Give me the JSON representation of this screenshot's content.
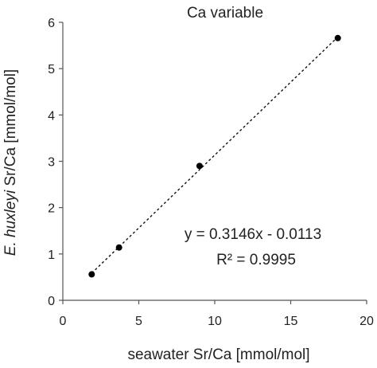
{
  "chart_data": {
    "type": "scatter",
    "title": "Ca variable",
    "xlabel": "seawater Sr/Ca [mmol/mol]",
    "ylabel_italic": "E. huxleyi",
    "ylabel_rest": " Sr/Ca [mmol/mol]",
    "xlim": [
      0,
      20
    ],
    "ylim": [
      0,
      6
    ],
    "x_ticks": [
      0,
      5,
      10,
      15,
      20
    ],
    "y_ticks": [
      0,
      1,
      2,
      3,
      4,
      5,
      6
    ],
    "x_tick_labels": [
      "0",
      "5",
      "10",
      "15",
      "20"
    ],
    "y_tick_labels": [
      "0",
      "1",
      "2",
      "3",
      "4",
      "5",
      "6"
    ],
    "grid": false,
    "legend": "none",
    "series": [
      {
        "x": [
          1.9,
          3.7,
          9.0,
          18.1
        ],
        "y": [
          0.56,
          1.14,
          2.9,
          5.66
        ]
      }
    ],
    "trendline": {
      "style": "dashed",
      "slope": 0.3146,
      "intercept": -0.0113,
      "x_range": [
        1.9,
        18.1
      ]
    },
    "annotations": {
      "equation": "y = 0.3146x - 0.0113",
      "r_squared": "R² = 0.9995"
    },
    "colors": {
      "points": "#000000",
      "axes": "#555555",
      "text": "#222222"
    }
  }
}
